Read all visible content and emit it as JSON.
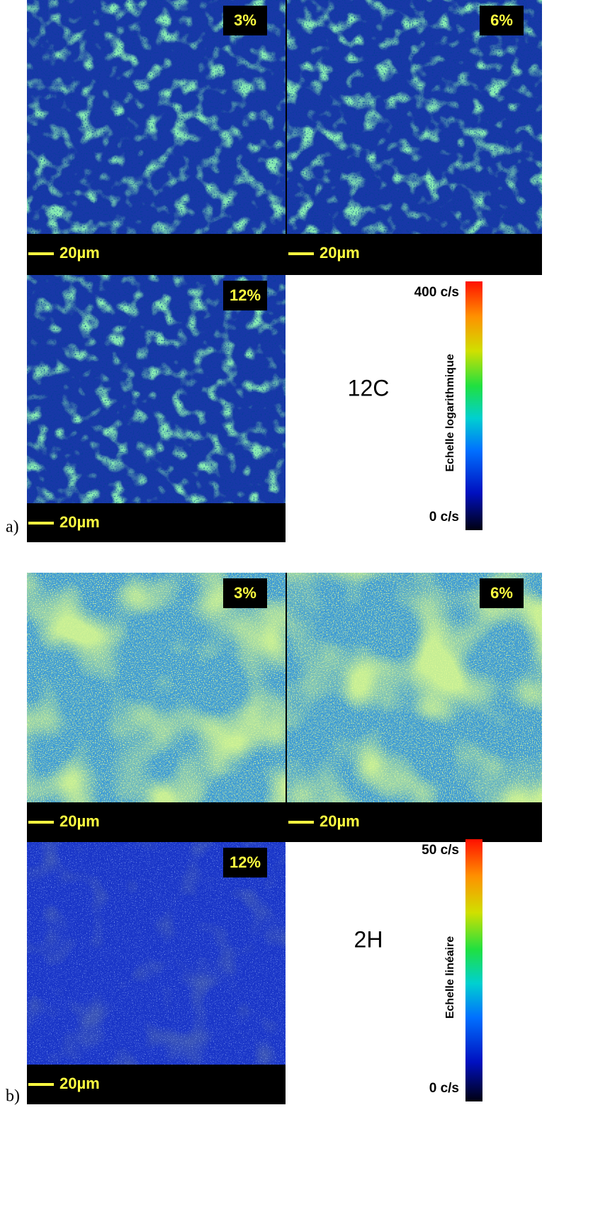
{
  "panels": [
    {
      "label": "a)",
      "element": "12C",
      "images": [
        {
          "tag": "3%",
          "scale_bar": "20µm"
        },
        {
          "tag": "6%",
          "scale_bar": "20µm"
        },
        {
          "tag": "12%",
          "scale_bar": "20µm"
        }
      ],
      "colorbar": {
        "max": "400 c/s",
        "min": "0 c/s",
        "title": "Echelle logarithmique"
      }
    },
    {
      "label": "b)",
      "element": "2H",
      "images": [
        {
          "tag": "3%",
          "scale_bar": "20µm"
        },
        {
          "tag": "6%",
          "scale_bar": "20µm"
        },
        {
          "tag": "12%",
          "scale_bar": "20µm"
        }
      ],
      "colorbar": {
        "max": "50 c/s",
        "min": "0 c/s",
        "title": "Echelle linéaire"
      }
    }
  ]
}
